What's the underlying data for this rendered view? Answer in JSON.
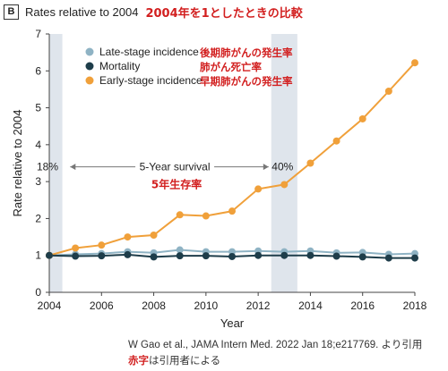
{
  "panel_label": "B",
  "title": "Rates relative to 2004",
  "title_ja": "2004年を1としたときの比較",
  "chart_data": {
    "type": "line",
    "xlabel": "Year",
    "ylabel": "Rate relative to 2004",
    "xlim": [
      2004,
      2018
    ],
    "ylim": [
      0,
      7
    ],
    "xticks": [
      2004,
      2006,
      2008,
      2010,
      2012,
      2014,
      2016,
      2018
    ],
    "yticks": [
      0,
      1,
      2,
      3,
      4,
      5,
      6,
      7
    ],
    "grid": false,
    "legend_position": "top-left",
    "x": [
      2004,
      2005,
      2006,
      2007,
      2008,
      2009,
      2010,
      2011,
      2012,
      2013,
      2014,
      2015,
      2016,
      2017,
      2018
    ],
    "series": [
      {
        "name": "Late-stage incidence",
        "label_ja": "後期肺がんの発生率",
        "color": "#8fb3c4",
        "values": [
          1.0,
          1.03,
          1.05,
          1.1,
          1.07,
          1.15,
          1.1,
          1.1,
          1.12,
          1.1,
          1.12,
          1.07,
          1.08,
          1.03,
          1.05
        ]
      },
      {
        "name": "Mortality",
        "label_ja": "肺がん死亡率",
        "color": "#1e3d4a",
        "values": [
          1.0,
          0.98,
          0.99,
          1.02,
          0.96,
          0.99,
          0.99,
          0.97,
          1.0,
          1.0,
          1.0,
          0.98,
          0.96,
          0.93,
          0.93
        ]
      },
      {
        "name": "Early-stage incidence",
        "label_ja": "早期肺がんの発生率",
        "color": "#f0a03a",
        "values": [
          1.0,
          1.2,
          1.28,
          1.5,
          1.55,
          2.1,
          2.07,
          2.2,
          2.8,
          2.92,
          3.5,
          4.1,
          4.7,
          5.45,
          6.22
        ]
      }
    ],
    "shaded_regions": [
      {
        "from": 2004,
        "to": 2004.5,
        "label": "18%"
      },
      {
        "from": 2012.5,
        "to": 2013.5,
        "label": "40%"
      }
    ],
    "annotation": {
      "text": "5-Year survival",
      "text_ja": "5年生存率",
      "y": 3.4,
      "arrow_from": 2004.8,
      "arrow_to": 2012.4
    }
  },
  "source": "W Gao et al., JAMA Intern Med. 2022 Jan 18;e217769. より引用",
  "note_red": "赤字",
  "note_rest": "は引用者による"
}
